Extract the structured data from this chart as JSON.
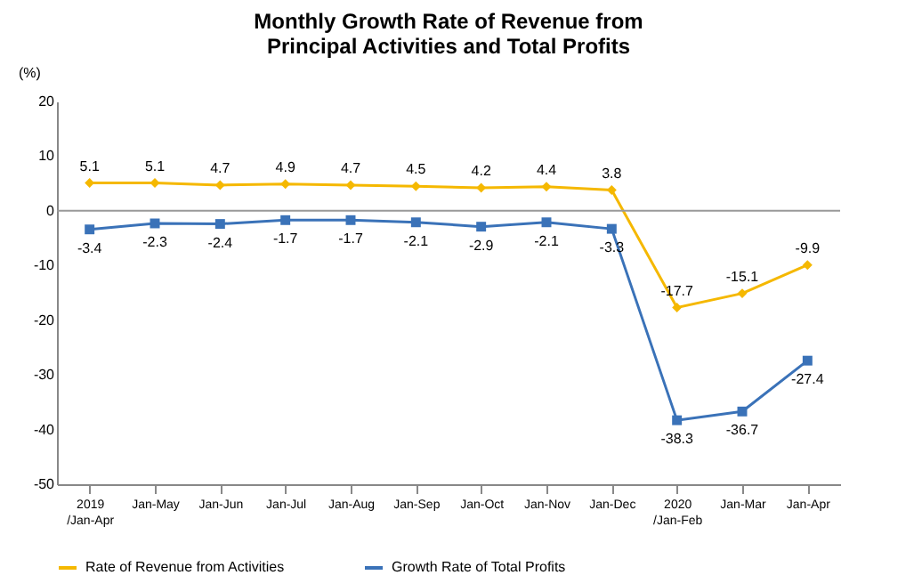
{
  "chart_data": {
    "type": "line",
    "title": "Monthly Growth Rate of Revenue from\nPrincipal Activities  and Total Profits",
    "ylabel": "(%)",
    "categories": [
      "2019\n/Jan-Apr",
      "Jan-May",
      "Jan-Jun",
      "Jan-Jul",
      "Jan-Aug",
      "Jan-Sep",
      "Jan-Oct",
      "Jan-Nov",
      "Jan-Dec",
      "2020\n/Jan-Feb",
      "Jan-Mar",
      "Jan-Apr"
    ],
    "series": [
      {
        "name": "Rate of Revenue from Activities",
        "color": "#f5b800",
        "marker": "diamond",
        "values": [
          5.1,
          5.1,
          4.7,
          4.9,
          4.7,
          4.5,
          4.2,
          4.4,
          3.8,
          -17.7,
          -15.1,
          -9.9
        ]
      },
      {
        "name": "Growth Rate of Total Profits",
        "color": "#3a72b8",
        "marker": "square",
        "values": [
          -3.4,
          -2.3,
          -2.4,
          -1.7,
          -1.7,
          -2.1,
          -2.9,
          -2.1,
          -3.3,
          -38.3,
          -36.7,
          -27.4
        ]
      }
    ],
    "ylim": [
      -50,
      20
    ],
    "yticks": [
      -50,
      -40,
      -30,
      -20,
      -10,
      0,
      10,
      20
    ],
    "ref_lines": [
      {
        "axis": "y",
        "value": 0,
        "color": "#999999"
      }
    ],
    "data_labels": true,
    "legend": "bottom",
    "grid": false
  }
}
